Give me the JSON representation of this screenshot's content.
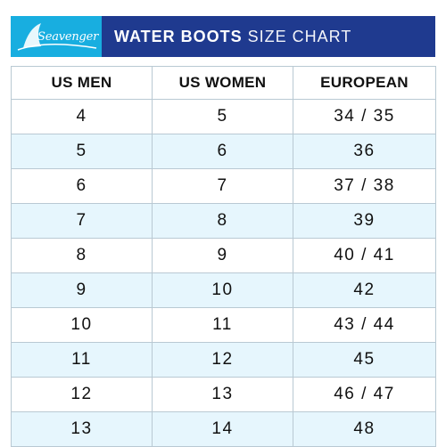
{
  "logo": {
    "text": "Seavenger",
    "icon": "shark-fin-icon"
  },
  "header": {
    "title_bold": "WATER BOOTS",
    "title_light": "SIZE CHART"
  },
  "colors": {
    "logo_bg": "#18aee0",
    "title_bg": "#1f3a8f",
    "row_shade": "#e6f6fd"
  },
  "table": {
    "columns": [
      "US MEN",
      "US WOMEN",
      "EUROPEAN"
    ],
    "rows": [
      [
        "4",
        "5",
        "34 / 35"
      ],
      [
        "5",
        "6",
        "36"
      ],
      [
        "6",
        "7",
        "37 / 38"
      ],
      [
        "7",
        "8",
        "39"
      ],
      [
        "8",
        "9",
        "40 / 41"
      ],
      [
        "9",
        "10",
        "42"
      ],
      [
        "10",
        "11",
        "43 / 44"
      ],
      [
        "11",
        "12",
        "45"
      ],
      [
        "12",
        "13",
        "46 / 47"
      ],
      [
        "13",
        "14",
        "48"
      ]
    ]
  }
}
